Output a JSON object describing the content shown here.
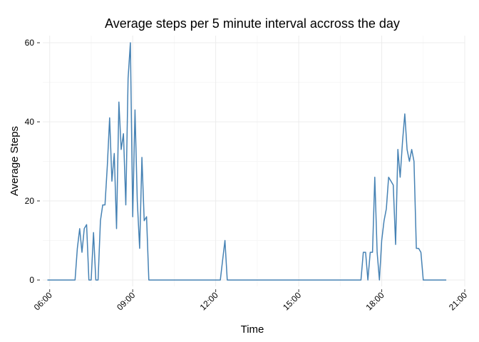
{
  "chart_data": {
    "type": "line",
    "title": "Average steps per 5 minute interval accross the day",
    "xlabel": "Time",
    "ylabel": "Average Steps",
    "x_format": "HH:MM",
    "xlim": [
      "05:45",
      "21:00"
    ],
    "ylim": [
      0,
      60
    ],
    "x_ticks": [
      "06:00",
      "09:00",
      "12:00",
      "15:00",
      "18:00",
      "21:00"
    ],
    "y_ticks": [
      0,
      20,
      40,
      60
    ],
    "grid": true,
    "line_color": "#4682b4",
    "series": [
      {
        "x": [
          "05:55",
          "06:10",
          "06:25",
          "06:45",
          "06:55",
          "07:00",
          "07:05",
          "07:10",
          "07:15",
          "07:20",
          "07:25",
          "07:30",
          "07:35",
          "07:40",
          "07:45",
          "07:50",
          "07:55",
          "08:00",
          "08:05",
          "08:10",
          "08:15",
          "08:20",
          "08:25",
          "08:30",
          "08:35",
          "08:40",
          "08:45",
          "08:50",
          "08:55",
          "09:00",
          "09:05",
          "09:10",
          "09:15",
          "09:20",
          "09:25",
          "09:30",
          "09:35",
          "09:45",
          "10:30",
          "11:30",
          "12:05",
          "12:10",
          "12:15",
          "12:20",
          "12:25",
          "12:30",
          "13:30",
          "14:30",
          "15:30",
          "16:30",
          "17:10",
          "17:15",
          "17:20",
          "17:25",
          "17:30",
          "17:35",
          "17:40",
          "17:45",
          "17:50",
          "17:55",
          "18:00",
          "18:05",
          "18:10",
          "18:15",
          "18:20",
          "18:25",
          "18:30",
          "18:35",
          "18:40",
          "18:45",
          "18:50",
          "18:55",
          "19:00",
          "19:05",
          "19:10",
          "19:15",
          "19:20",
          "19:25",
          "19:30",
          "19:45",
          "20:00",
          "20:15",
          "20:20"
        ],
        "y": [
          0,
          0,
          0,
          0,
          0,
          8,
          13,
          7,
          13,
          14,
          0,
          0,
          12,
          0,
          0,
          15,
          19,
          19,
          29,
          41,
          25,
          32,
          13,
          45,
          33,
          37,
          19,
          51,
          60,
          16,
          43,
          20,
          8,
          31,
          15,
          16,
          0,
          0,
          0,
          0,
          0,
          0,
          5,
          10,
          0,
          0,
          0,
          0,
          0,
          0,
          0,
          0,
          7,
          7,
          0,
          7,
          7,
          26,
          7,
          0,
          10,
          15,
          18,
          26,
          25,
          24,
          9,
          33,
          26,
          35,
          42,
          33,
          30,
          33,
          30,
          8,
          8,
          7,
          0,
          0,
          0,
          0,
          0
        ]
      }
    ]
  }
}
